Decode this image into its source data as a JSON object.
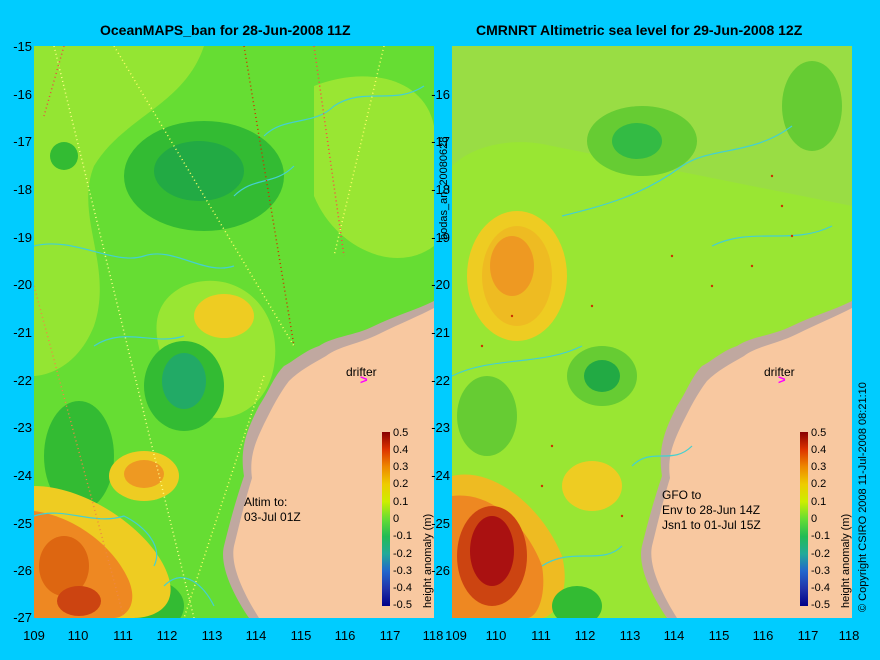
{
  "left_panel": {
    "title": "OceanMAPS_ban for 28-Jun-2008 11Z",
    "annotation": "Altim to:\n03-Jul 01Z",
    "drifter_label": "drifter",
    "drifter_symbol": ">"
  },
  "right_panel": {
    "title": "CMRNRT Altimetric sea level  for 29-Jun-2008 12Z",
    "annotation": "GFO to\nEnv to 28-Jun 14Z\nJsn1 to 01-Jul 15Z",
    "drifter_label": "drifter",
    "drifter_symbol": ">"
  },
  "side_text": {
    "product": "bodas_an_20080628",
    "copyright": "© Copyright CSIRO 2008  11-Jul-2008 08:21:10"
  },
  "axes": {
    "y_ticks": [
      "-15",
      "-16",
      "-17",
      "-18",
      "-19",
      "-20",
      "-21",
      "-22",
      "-23",
      "-24",
      "-25",
      "-26",
      "-27"
    ],
    "x_ticks": [
      "109",
      "110",
      "111",
      "112",
      "113",
      "114",
      "115",
      "116",
      "117",
      "118"
    ]
  },
  "colorbar": {
    "label": "height anomaly (m)",
    "ticks": [
      "0.5",
      "0.4",
      "0.3",
      "0.2",
      "0.1",
      "0",
      "-0.1",
      "-0.2",
      "-0.3",
      "-0.4",
      "-0.5"
    ]
  },
  "colors": {
    "background": "#00ccff",
    "land": "#f8c8a0",
    "coastal_shelf": "#c0a8a0",
    "contour": "#44d0d0",
    "drifter": "#ff00ff"
  }
}
